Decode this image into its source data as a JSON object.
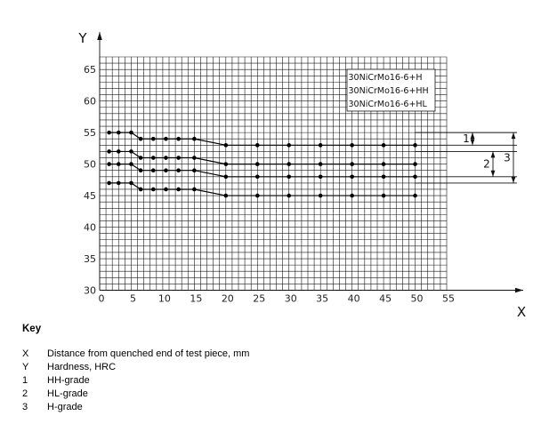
{
  "chart_data": {
    "type": "line",
    "xlabel": "X",
    "ylabel": "Y",
    "xlim": [
      0,
      55
    ],
    "ylim": [
      30,
      67
    ],
    "xticks": [
      0,
      5,
      10,
      15,
      20,
      25,
      30,
      35,
      40,
      45,
      50,
      55
    ],
    "yticks": [
      30,
      35,
      40,
      45,
      50,
      55,
      60,
      65
    ],
    "grid": true,
    "legend_position": "top-right",
    "legend_entries": [
      "30NiCrMo16-6+H",
      "30NiCrMo16-6+HH",
      "30NiCrMo16-6+HL"
    ],
    "x": [
      1.5,
      3,
      5,
      6.5,
      8.5,
      10.5,
      12.5,
      15,
      20,
      25,
      30,
      35,
      40,
      45,
      50
    ],
    "series": [
      {
        "values": [
          55,
          55,
          55,
          54,
          54,
          54,
          54,
          54,
          53,
          53,
          53,
          53,
          53,
          53,
          53
        ]
      },
      {
        "values": [
          52,
          52,
          52,
          51,
          51,
          51,
          51,
          51,
          50,
          50,
          50,
          50,
          50,
          50,
          50
        ]
      },
      {
        "values": [
          50,
          50,
          50,
          49,
          49,
          49,
          49,
          49,
          48,
          48,
          48,
          48,
          48,
          48,
          48
        ]
      },
      {
        "values": [
          47,
          47,
          47,
          46,
          46,
          46,
          46,
          46,
          45,
          45,
          45,
          45,
          45,
          45,
          45
        ]
      }
    ],
    "bands": [
      {
        "label": "1",
        "from": 53,
        "to": 55
      },
      {
        "label": "2",
        "from": 48,
        "to": 52
      },
      {
        "label": "3",
        "from": 47,
        "to": 55
      }
    ]
  },
  "key": {
    "title": "Key",
    "items": [
      {
        "symbol": "X",
        "text": "Distance from quenched end of test piece, mm"
      },
      {
        "symbol": "Y",
        "text": "Hardness, HRC"
      },
      {
        "symbol": "1",
        "text": "HH-grade"
      },
      {
        "symbol": "2",
        "text": "HL-grade"
      },
      {
        "symbol": "3",
        "text": "H-grade"
      }
    ]
  }
}
